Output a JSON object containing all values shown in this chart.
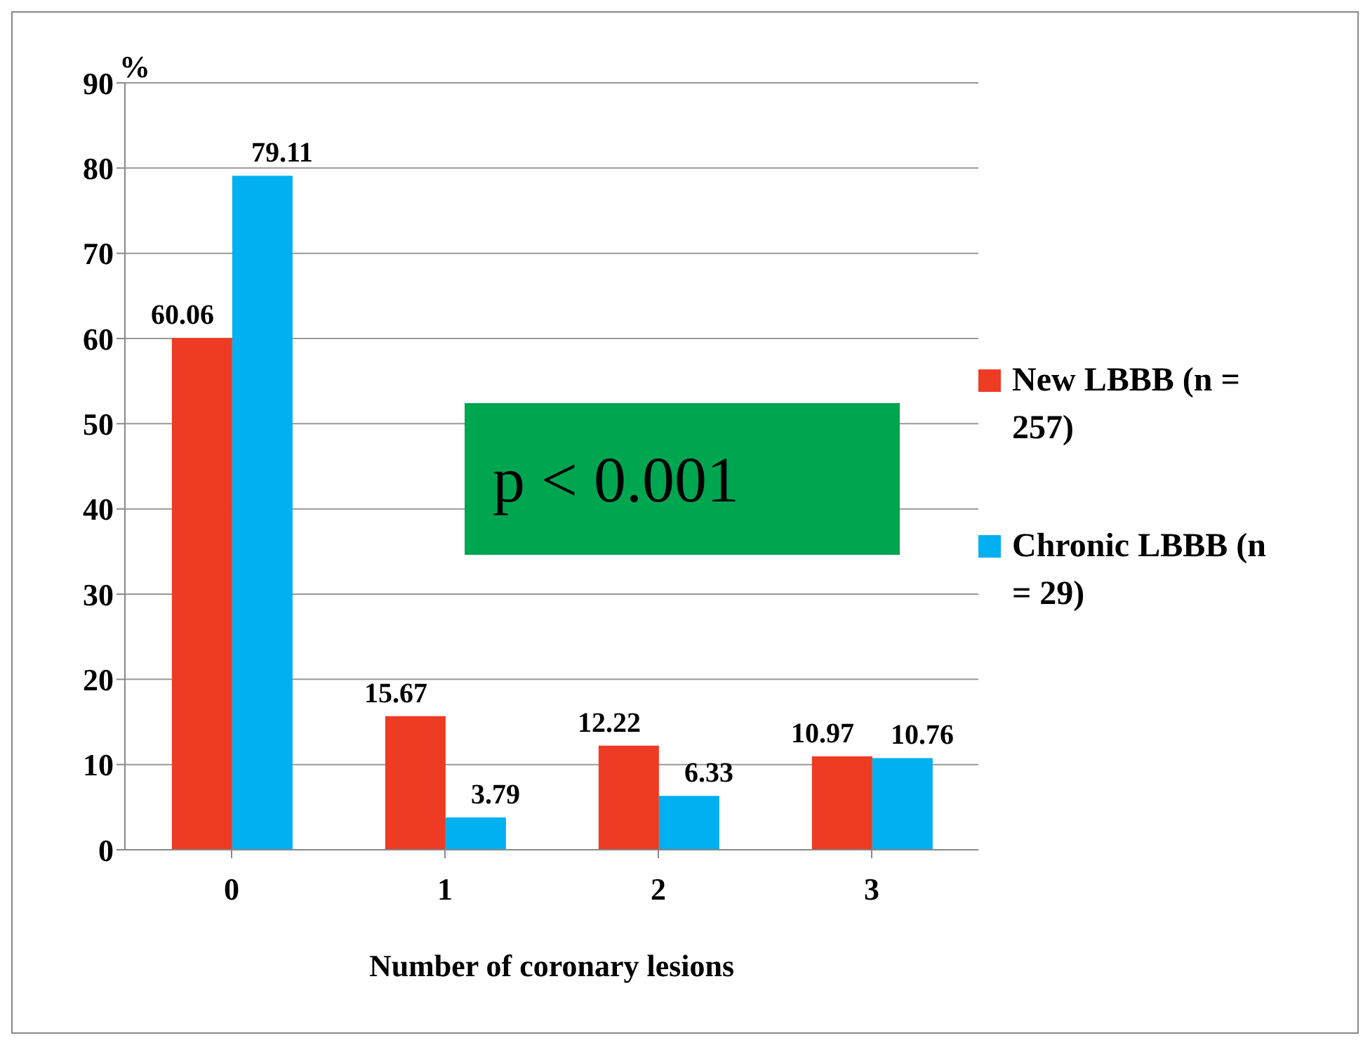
{
  "chart_data": {
    "type": "bar",
    "xlabel": "Number of coronary lesions",
    "ylabel": "%",
    "categories": [
      "0",
      "1",
      "2",
      "3"
    ],
    "series": [
      {
        "name": "New LBBB (n = 257)",
        "color": "#ee3b24",
        "values": [
          60.06,
          15.67,
          12.22,
          10.97
        ]
      },
      {
        "name": "Chronic LBBB (n = 29)",
        "color": "#00b0f0",
        "values": [
          79.11,
          3.79,
          6.33,
          10.76
        ]
      }
    ],
    "ylim": [
      0,
      90
    ],
    "yticks": [
      0,
      10,
      20,
      30,
      40,
      50,
      60,
      70,
      80,
      90
    ],
    "grid": "y",
    "legend": "right",
    "data_labels": true,
    "annotations": [
      "p < 0.001"
    ]
  }
}
